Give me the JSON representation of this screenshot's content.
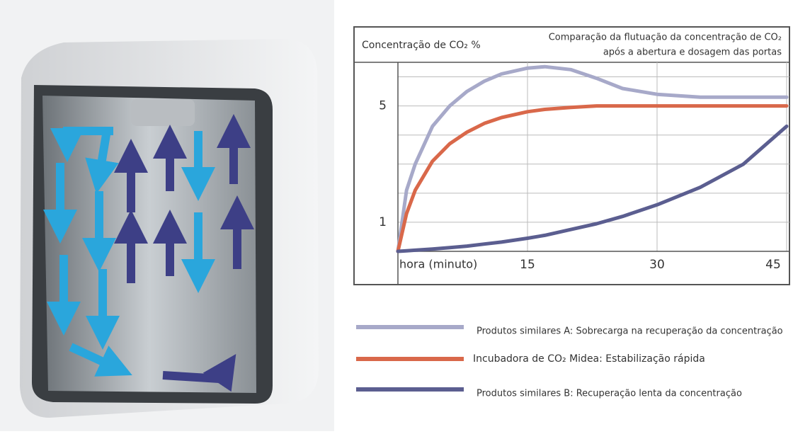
{
  "chart_data": {
    "type": "line",
    "y_label": "Concentração de CO₂ %",
    "title": "Comparação da flutuação da concentração de CO₂",
    "subtitle": "após a abertura e dosagem das portas",
    "x_label": "hora (minuto)",
    "x": [
      0,
      1,
      2,
      4,
      6,
      8,
      10,
      12,
      15,
      17,
      20,
      23,
      26,
      30,
      35,
      40,
      45
    ],
    "xlim": [
      0,
      45
    ],
    "xticks": [
      15,
      30,
      45
    ],
    "ylim": [
      0,
      6.5
    ],
    "yticks": [
      1,
      5
    ],
    "ygrid": [
      1,
      2,
      3,
      4,
      5,
      6
    ],
    "series": [
      {
        "name": "Produtos similares A: Sobrecarga na recuperação da concentração",
        "color": "#a7a9c9",
        "values": [
          0,
          2.1,
          3.0,
          4.3,
          5.0,
          5.5,
          5.85,
          6.1,
          6.3,
          6.35,
          6.25,
          5.95,
          5.6,
          5.4,
          5.3,
          5.3,
          5.3
        ]
      },
      {
        "name": "Incubadora de CO₂ Midea: Estabilização rápida",
        "color": "#d9684a",
        "values": [
          0,
          1.3,
          2.1,
          3.1,
          3.7,
          4.1,
          4.4,
          4.6,
          4.8,
          4.88,
          4.95,
          5,
          5,
          5,
          5,
          5,
          5
        ]
      },
      {
        "name": "Produtos similares B: Recuperação lenta da concentração",
        "color": "#5b5e90",
        "values": [
          0,
          0.02,
          0.04,
          0.08,
          0.13,
          0.18,
          0.25,
          0.32,
          0.45,
          0.55,
          0.75,
          0.95,
          1.2,
          1.6,
          2.2,
          3.0,
          4.3
        ]
      }
    ]
  }
}
